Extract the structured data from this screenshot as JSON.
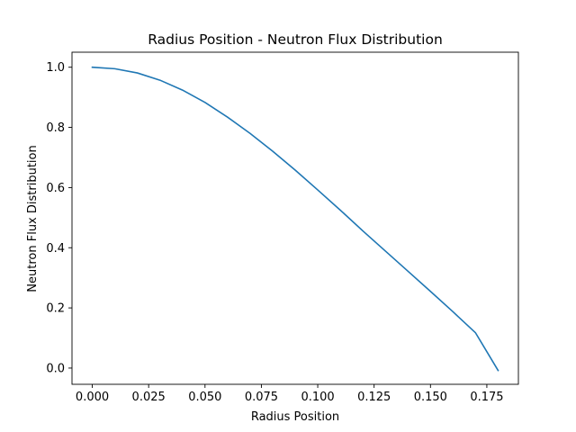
{
  "chart_data": {
    "type": "line",
    "title": "Radius Position - Neutron Flux Distribution",
    "xlabel": "Radius Position",
    "ylabel": "Neutron Flux Distribution",
    "xlim": [
      -0.009,
      0.189
    ],
    "ylim": [
      -0.054,
      1.05
    ],
    "xticks": [
      0.0,
      0.025,
      0.05,
      0.075,
      0.1,
      0.125,
      0.15,
      0.175
    ],
    "xtick_labels": [
      "0.000",
      "0.025",
      "0.050",
      "0.075",
      "0.100",
      "0.125",
      "0.150",
      "0.175"
    ],
    "yticks": [
      0.0,
      0.2,
      0.4,
      0.6,
      0.8,
      1.0
    ],
    "ytick_labels": [
      "0.0",
      "0.2",
      "0.4",
      "0.6",
      "0.8",
      "1.0"
    ],
    "grid": false,
    "series": [
      {
        "color": "#1f77b4",
        "x": [
          0.0,
          0.01,
          0.02,
          0.03,
          0.04,
          0.05,
          0.06,
          0.07,
          0.08,
          0.09,
          0.1,
          0.11,
          0.12,
          0.13,
          0.14,
          0.15,
          0.16,
          0.17,
          0.18
        ],
        "y": [
          1.0,
          0.995,
          0.981,
          0.957,
          0.924,
          0.883,
          0.834,
          0.78,
          0.721,
          0.658,
          0.592,
          0.525,
          0.456,
          0.389,
          0.322,
          0.255,
          0.187,
          0.117,
          -0.008
        ]
      }
    ]
  }
}
